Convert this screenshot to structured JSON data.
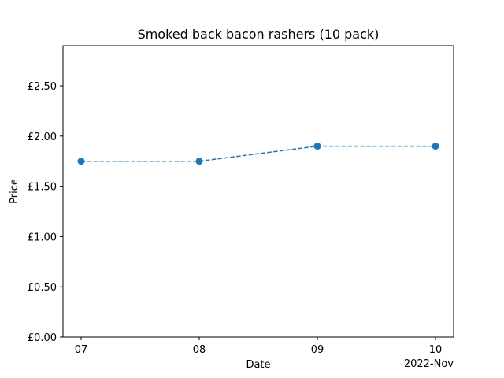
{
  "chart_data": {
    "type": "line",
    "title": "Smoked back bacon rashers (10 pack)",
    "xlabel": "Date",
    "ylabel": "Price",
    "x_offset_label": "2022-Nov",
    "categories": [
      "07",
      "08",
      "09",
      "10"
    ],
    "series": [
      {
        "values": [
          1.75,
          1.75,
          1.9,
          1.9
        ],
        "color": "#1f77b4",
        "line_style": "dashed",
        "marker": "circle"
      }
    ],
    "ylim": [
      0,
      2.9
    ],
    "yticks": [
      0.0,
      0.5,
      1.0,
      1.5,
      2.0,
      2.5
    ],
    "ytick_labels": [
      "£0.00",
      "£0.50",
      "£1.00",
      "£1.50",
      "£2.00",
      "£2.50"
    ],
    "grid": false,
    "legend": "none"
  }
}
